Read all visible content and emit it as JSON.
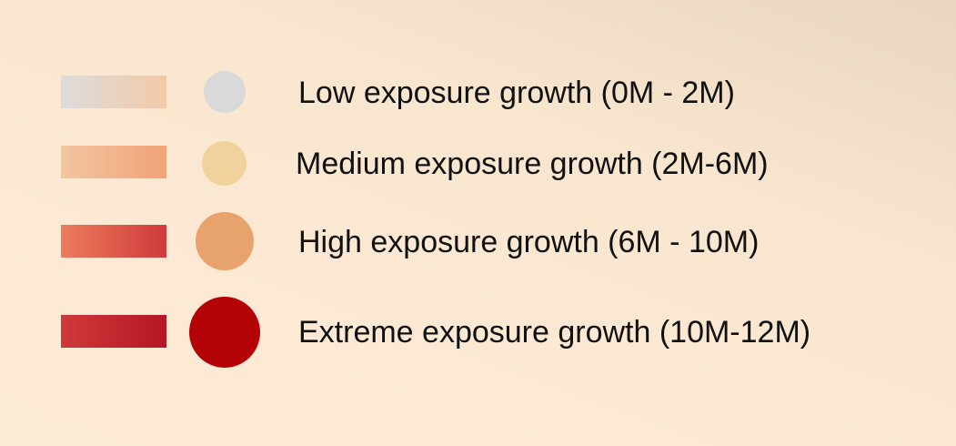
{
  "legend": {
    "items": [
      {
        "label": "Low exposure growth (0M - 2M)",
        "swatch_colors": [
          "#dcdcdc",
          "#f3c9a8"
        ],
        "dot_color": "#d9d9d9"
      },
      {
        "label": "Medium exposure growth (2M-6M)",
        "swatch_colors": [
          "#f2c6a2",
          "#f2a276"
        ],
        "dot_color": "#f1d29c"
      },
      {
        "label": "High exposure growth (6M - 10M)",
        "swatch_colors": [
          "#ec7d5d",
          "#cf3a3a"
        ],
        "dot_color": "#e8a26b"
      },
      {
        "label": "Extreme exposure growth (10M-12M)",
        "swatch_colors": [
          "#cf3a3a",
          "#b51522"
        ],
        "dot_color": "#b40306"
      }
    ]
  }
}
